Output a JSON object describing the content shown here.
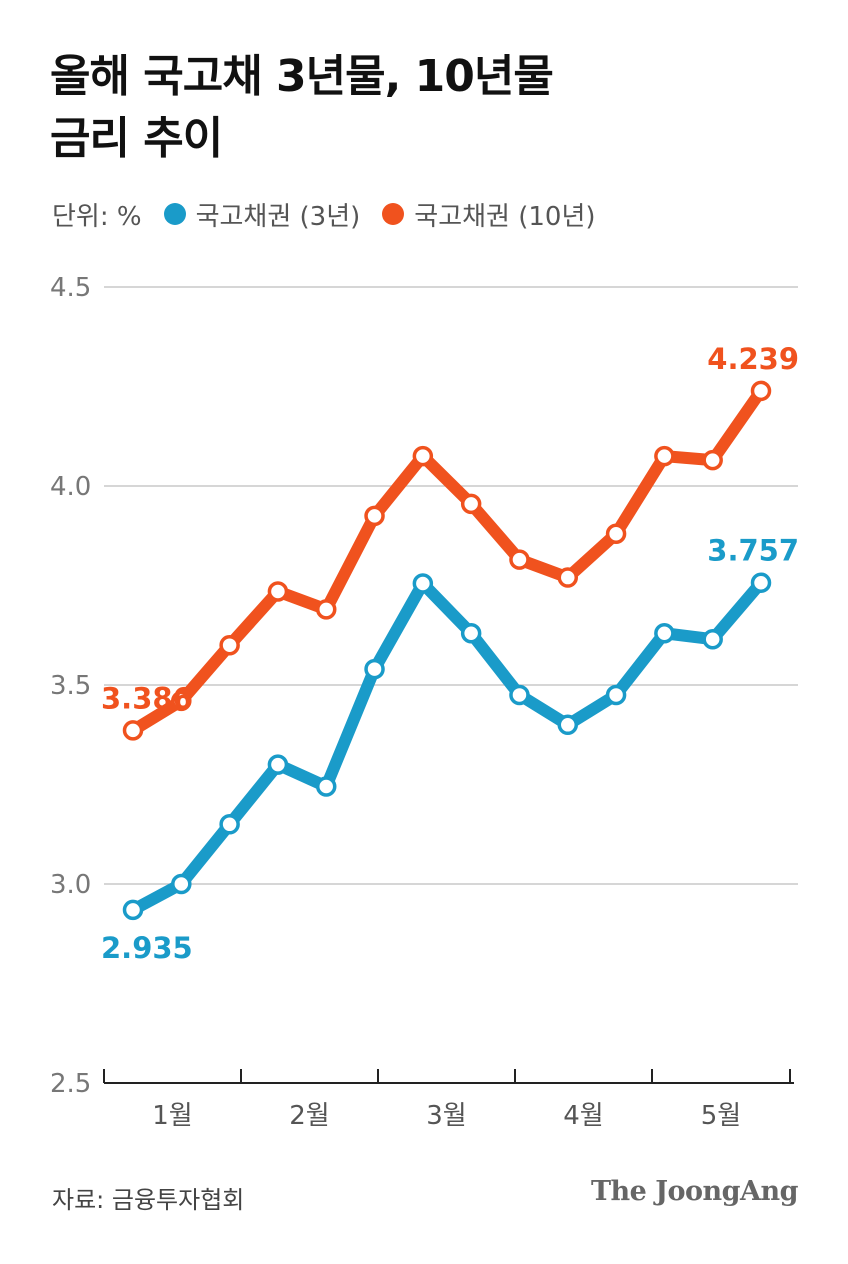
{
  "title_lines": [
    "올해 국고채 3년물, 10년물",
    "금리 추이"
  ],
  "legend": {
    "unit": "단위: %",
    "items": [
      {
        "label": "국고채권 (3년)",
        "color": "#1a9bc9"
      },
      {
        "label": "국고채권 (10년)",
        "color": "#f0521e"
      }
    ]
  },
  "source": "자료: 금융투자협회",
  "brand": "The JoongAng",
  "chart_data": {
    "type": "line",
    "title": "올해 국고채 3년물, 10년물 금리 추이",
    "ylim": [
      2.5,
      4.5
    ],
    "y_ticks": [
      "2.5",
      "3.0",
      "3.5",
      "4.0",
      "4.5"
    ],
    "x_tick_labels": [
      "1월",
      "2월",
      "3월",
      "4월",
      "5월"
    ],
    "grid": true,
    "series": [
      {
        "name": "국고채권 (3년)",
        "color": "#1a9bc9",
        "values": [
          2.935,
          3.0,
          3.15,
          3.3,
          3.245,
          3.54,
          3.755,
          3.63,
          3.475,
          3.4,
          3.475,
          3.63,
          3.615,
          3.757
        ],
        "labels": [
          {
            "index": 0,
            "text": "2.935",
            "position": "below"
          },
          {
            "index": 13,
            "text": "3.757",
            "position": "above"
          }
        ]
      },
      {
        "name": "국고채권 (10년)",
        "color": "#f0521e",
        "values": [
          3.386,
          3.46,
          3.6,
          3.735,
          3.69,
          3.925,
          4.075,
          3.955,
          3.815,
          3.77,
          3.88,
          4.075,
          4.065,
          4.239
        ],
        "labels": [
          {
            "index": 0,
            "text": "3.386",
            "position": "above"
          },
          {
            "index": 13,
            "text": "4.239",
            "position": "above"
          }
        ]
      }
    ]
  }
}
